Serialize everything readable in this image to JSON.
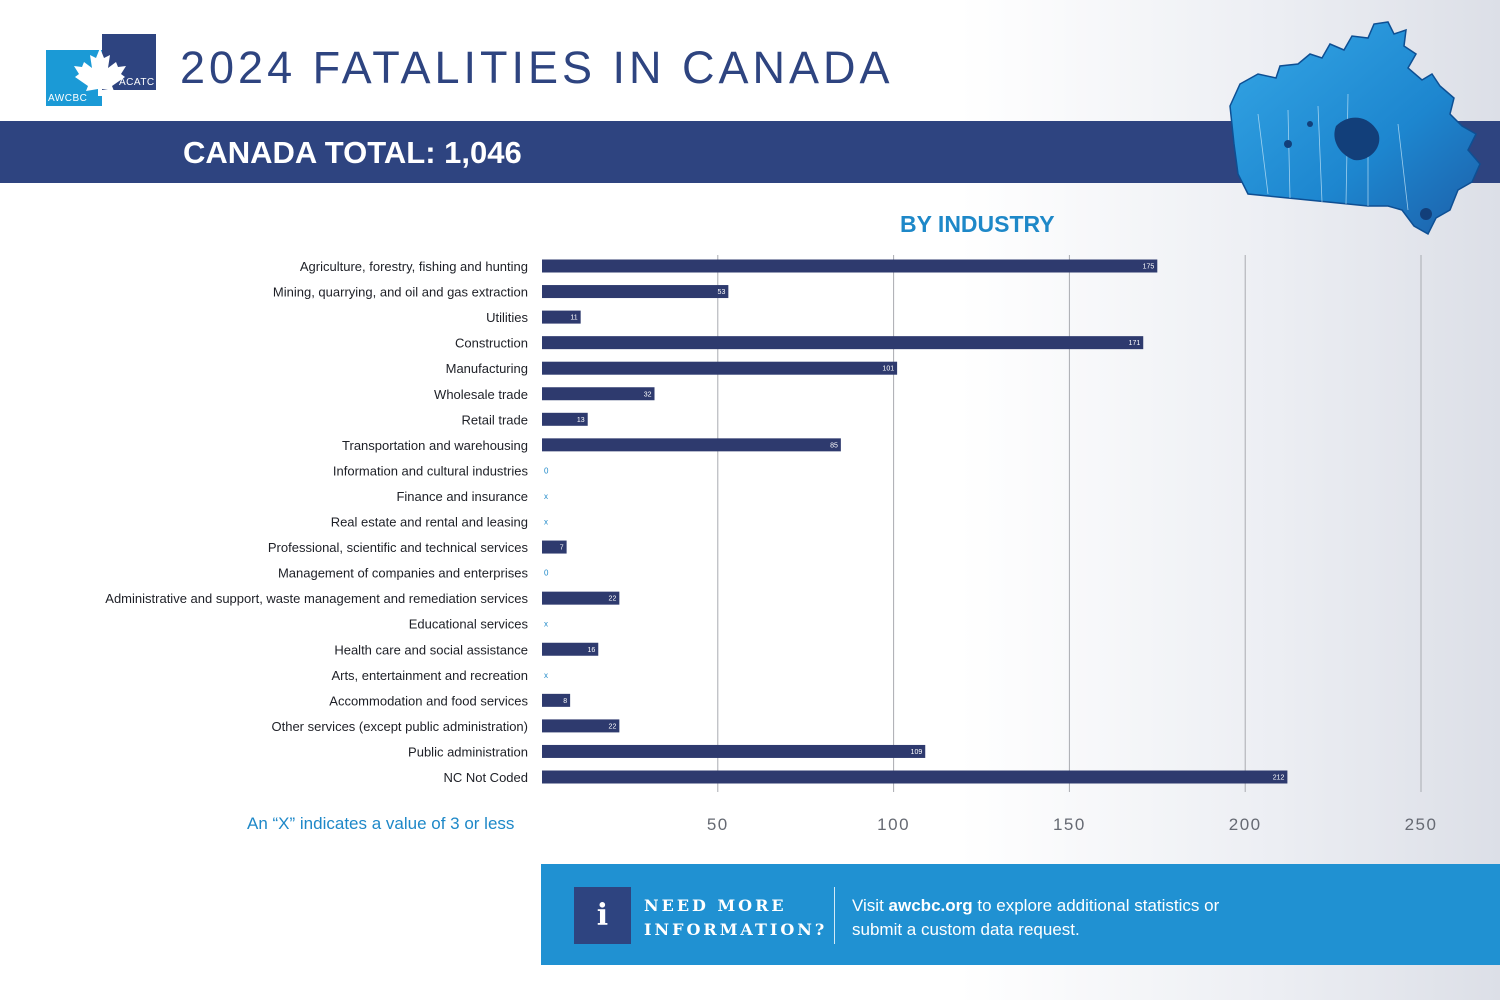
{
  "logo": {
    "left_text": "AWCBC",
    "right_text": "ACATC"
  },
  "header": {
    "title": "2024 FATALITIES IN CANADA",
    "total_label": "CANADA TOTAL: 1,046"
  },
  "colors": {
    "navy": "#2e4480",
    "accent_blue": "#1e88c8",
    "info_blue": "#2091d2",
    "bar": "#2e3a6e",
    "grid": "#a9abb0"
  },
  "chart_data": {
    "type": "bar",
    "orientation": "horizontal",
    "title": "BY INDUSTRY",
    "categories": [
      "Agriculture, forestry, fishing and hunting",
      "Mining, quarrying, and oil and gas extraction",
      "Utilities",
      "Construction",
      "Manufacturing",
      "Wholesale trade",
      "Retail trade",
      "Transportation and warehousing",
      "Information and cultural industries",
      "Finance and insurance",
      "Real estate and rental and leasing",
      "Professional, scientific and technical services",
      "Management of companies and enterprises",
      "Administrative and support, waste management and remediation services",
      "Educational services",
      "Health care and social assistance",
      "Arts, entertainment and recreation",
      "Accommodation and food services",
      "Other services (except public administration)",
      "Public administration",
      "NC Not Coded"
    ],
    "values": [
      175,
      53,
      11,
      171,
      101,
      32,
      13,
      85,
      0,
      null,
      null,
      7,
      0,
      22,
      null,
      16,
      null,
      8,
      22,
      109,
      212
    ],
    "value_labels": [
      "175",
      "53",
      "11",
      "171",
      "101",
      "32",
      "13",
      "85",
      "0",
      "x",
      "x",
      "7",
      "0",
      "22",
      "x",
      "16",
      "x",
      "8",
      "22",
      "109",
      "212"
    ],
    "xlim": [
      0,
      250
    ],
    "xticks": [
      50,
      100,
      150,
      200,
      250
    ],
    "grid": true,
    "note": "An “X” indicates a value of 3 or less"
  },
  "info": {
    "icon": "info-icon",
    "icon_glyph": "i",
    "heading_line1": "NEED MORE",
    "heading_line2": "INFORMATION?",
    "text_before": "Visit ",
    "link": "awcbc.org",
    "text_after": " to explore additional statistics or submit a custom data request."
  }
}
